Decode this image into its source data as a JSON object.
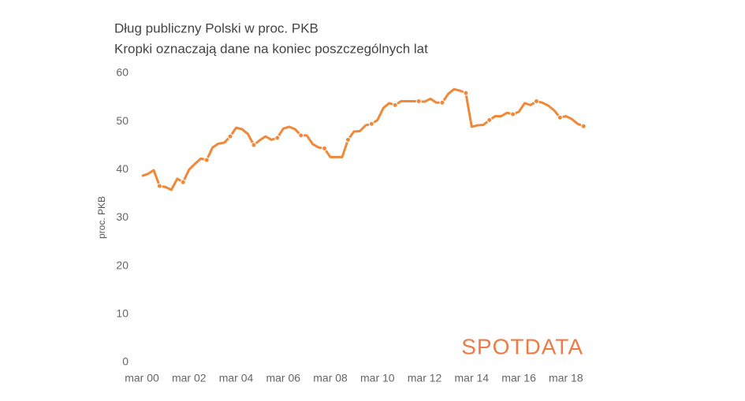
{
  "chart_data": {
    "type": "line",
    "title": "Dług publiczny Polski w proc. PKB",
    "subtitle": "Kropki oznaczają dane na koniec poszczególnych lat",
    "y_label": "proc. PKB",
    "logo": "SPOTDATA",
    "categories": [
      "mar 00",
      null,
      null,
      null,
      null,
      null,
      null,
      null,
      "mar 02",
      null,
      null,
      null,
      null,
      null,
      null,
      null,
      "mar 04",
      null,
      null,
      null,
      null,
      null,
      null,
      null,
      "mar 06",
      null,
      null,
      null,
      null,
      null,
      null,
      null,
      "mar 08",
      null,
      null,
      null,
      null,
      null,
      null,
      null,
      "mar 10",
      null,
      null,
      null,
      null,
      null,
      null,
      null,
      "mar 12",
      null,
      null,
      null,
      null,
      null,
      null,
      null,
      "mar 14",
      null,
      null,
      null,
      null,
      null,
      null,
      null,
      "mar 16",
      null,
      null,
      null,
      null,
      null,
      null,
      null,
      "mar 18",
      null,
      null,
      null
    ],
    "series": [
      {
        "color": "#f0883a",
        "values": [
          38.7,
          39.1,
          39.9,
          36.6,
          36.4,
          35.8,
          38.1,
          37.4,
          40.0,
          41.2,
          42.3,
          42.0,
          44.6,
          45.4,
          45.6,
          46.9,
          48.7,
          48.4,
          47.4,
          45.1,
          46.1,
          46.9,
          46.2,
          46.6,
          48.5,
          48.9,
          48.4,
          47.1,
          47.1,
          45.3,
          44.6,
          44.4,
          42.6,
          42.6,
          42.6,
          46.2,
          47.9,
          48.0,
          49.2,
          49.5,
          50.3,
          52.8,
          53.8,
          53.4,
          54.2,
          54.2,
          54.2,
          54.2,
          54.1,
          54.7,
          53.9,
          53.9,
          55.7,
          56.7,
          56.4,
          55.9,
          48.9,
          49.2,
          49.3,
          50.3,
          51.1,
          51.1,
          51.8,
          51.5,
          52.0,
          53.8,
          53.4,
          54.2,
          53.9,
          53.3,
          52.3,
          50.8,
          51.1,
          50.5,
          49.5,
          49.0
        ]
      }
    ],
    "marker_every": 4,
    "marker_offset": 3,
    "ylim": [
      0,
      60
    ],
    "yticks": [
      0,
      10,
      20,
      30,
      40,
      50,
      60
    ],
    "grid": false
  }
}
